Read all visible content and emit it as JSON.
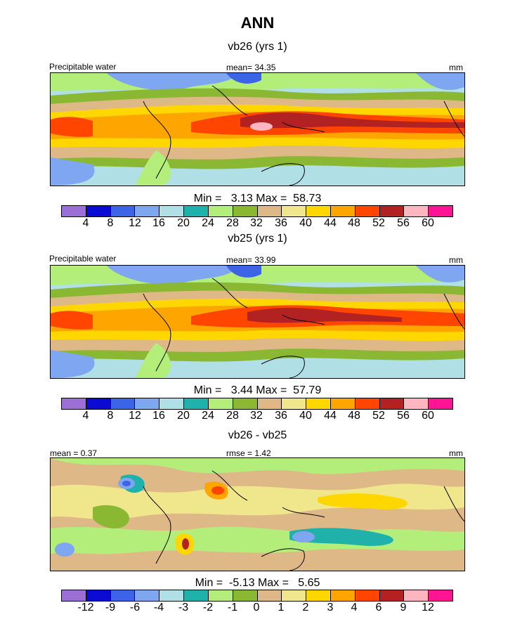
{
  "title": "ANN",
  "colors": [
    "#9b6fd6",
    "#0a0ad2",
    "#3c64e6",
    "#7fa6f0",
    "#b0e0e6",
    "#20b2aa",
    "#b4ee7a",
    "#8ab833",
    "#deb887",
    "#f0e68c",
    "#ffd700",
    "#ffa500",
    "#ff4500",
    "#b22222",
    "#ffb6c1",
    "#ff1493"
  ],
  "panels": [
    {
      "title": "vb26 (yrs 1)",
      "left_label": "Precipitable water",
      "center_label": "mean=  34.35",
      "right_label": "mm",
      "minmax": "Min =   3.13 Max =  58.73",
      "ticks": [
        "4",
        "8",
        "12",
        "16",
        "20",
        "24",
        "28",
        "32",
        "36",
        "40",
        "44",
        "48",
        "52",
        "56",
        "60"
      ]
    },
    {
      "title": "vb25 (yrs 1)",
      "left_label": "Precipitable water",
      "center_label": "mean=  33.99",
      "right_label": "mm",
      "minmax": "Min =   3.44 Max =  57.79",
      "ticks": [
        "4",
        "8",
        "12",
        "16",
        "20",
        "24",
        "28",
        "32",
        "36",
        "40",
        "44",
        "48",
        "52",
        "56",
        "60"
      ]
    },
    {
      "title": "vb26 - vb25",
      "left_label": "mean =   0.37",
      "center_label": "rmse =   1.42",
      "right_label": "mm",
      "minmax": "Min =  -5.13 Max =   5.65",
      "ticks": [
        "-12",
        "-9",
        "-6",
        "-4",
        "-3",
        "-2",
        "-1",
        "0",
        "1",
        "2",
        "3",
        "4",
        "6",
        "9",
        "12"
      ]
    }
  ],
  "chart_data": [
    {
      "type": "heatmap",
      "title": "vb26 (yrs 1)",
      "variable": "Precipitable water",
      "units": "mm",
      "mean": 34.35,
      "min": 3.13,
      "max": 58.73,
      "levels": [
        4,
        8,
        12,
        16,
        20,
        24,
        28,
        32,
        36,
        40,
        44,
        48,
        52,
        56,
        60
      ]
    },
    {
      "type": "heatmap",
      "title": "vb25 (yrs 1)",
      "variable": "Precipitable water",
      "units": "mm",
      "mean": 33.99,
      "min": 3.44,
      "max": 57.79,
      "levels": [
        4,
        8,
        12,
        16,
        20,
        24,
        28,
        32,
        36,
        40,
        44,
        48,
        52,
        56,
        60
      ]
    },
    {
      "type": "heatmap",
      "title": "vb26 - vb25",
      "units": "mm",
      "mean": 0.37,
      "rmse": 1.42,
      "min": -5.13,
      "max": 5.65,
      "levels": [
        -12,
        -9,
        -6,
        -4,
        -3,
        -2,
        -1,
        0,
        1,
        2,
        3,
        4,
        6,
        9,
        12
      ]
    }
  ]
}
